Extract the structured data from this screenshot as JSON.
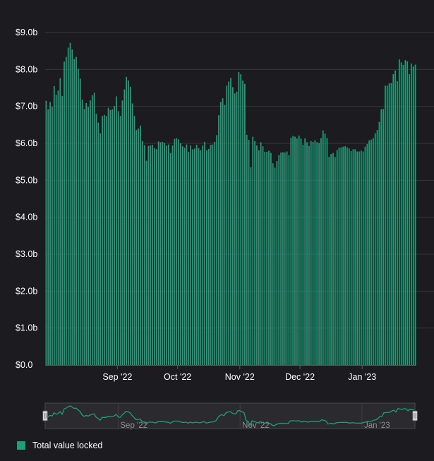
{
  "colors": {
    "background": "#1c1b1f",
    "bar": "#1f9e7a",
    "grid": "#38373b",
    "navigator_line": "#1f9e7a"
  },
  "legend": {
    "label": "Total value locked"
  },
  "chart_data": {
    "type": "bar",
    "title": "",
    "xlabel": "",
    "ylabel": "",
    "ylim": [
      0,
      9
    ],
    "yticks": [
      "$0.0",
      "$1.0b",
      "$2.0b",
      "$3.0b",
      "$4.0b",
      "$5.0b",
      "$6.0b",
      "$7.0b",
      "$8.0b",
      "$9.0b"
    ],
    "xticks": [
      "Sep '22",
      "Oct '22",
      "Nov '22",
      "Dec '22",
      "Jan '23"
    ],
    "navigator_ticks": [
      "Sep '22",
      "Nov '22",
      "Jan '23"
    ],
    "grid": true,
    "legend_position": "bottom-left",
    "x_start": "2022-07-27",
    "x_end": "2023-01-23",
    "series": [
      {
        "name": "Total value locked",
        "unit": "billion USD",
        "values": [
          7.15,
          6.92,
          7.12,
          6.99,
          7.55,
          7.31,
          7.43,
          7.76,
          7.28,
          8.21,
          8.34,
          8.59,
          8.72,
          8.54,
          8.28,
          8.34,
          8.02,
          7.75,
          7.18,
          6.93,
          7.09,
          6.98,
          7.16,
          7.3,
          7.37,
          6.8,
          6.56,
          6.27,
          6.74,
          6.77,
          6.74,
          6.96,
          6.9,
          6.92,
          7.01,
          7.27,
          6.87,
          6.74,
          7.16,
          7.46,
          7.8,
          7.7,
          7.53,
          7.08,
          6.74,
          6.36,
          6.4,
          6.48,
          6.06,
          5.95,
          5.53,
          5.93,
          5.94,
          5.96,
          5.87,
          5.84,
          6.05,
          6.03,
          6.04,
          6.01,
          5.94,
          5.97,
          5.74,
          5.94,
          6.12,
          6.14,
          6.11,
          6.0,
          5.92,
          5.88,
          5.97,
          5.77,
          5.94,
          5.84,
          5.86,
          5.96,
          5.87,
          5.82,
          5.94,
          6.04,
          5.81,
          5.85,
          5.96,
          5.97,
          6.04,
          6.22,
          6.76,
          7.12,
          7.22,
          7.04,
          7.56,
          7.67,
          7.77,
          7.52,
          7.35,
          7.4,
          7.93,
          7.87,
          7.7,
          7.61,
          6.23,
          6.09,
          5.35,
          6.18,
          6.06,
          5.94,
          5.81,
          6.03,
          5.92,
          5.77,
          5.77,
          5.8,
          5.74,
          5.46,
          5.34,
          5.52,
          5.68,
          5.75,
          5.76,
          5.75,
          5.78,
          5.68,
          6.15,
          6.2,
          6.18,
          6.13,
          6.21,
          6.13,
          5.96,
          6.13,
          6.03,
          5.93,
          6.06,
          6.04,
          6.08,
          6.03,
          6.01,
          6.14,
          6.35,
          6.26,
          6.14,
          5.63,
          5.71,
          5.74,
          5.63,
          5.82,
          5.88,
          5.89,
          5.91,
          5.92,
          5.89,
          5.86,
          5.79,
          5.84,
          5.84,
          5.78,
          5.78,
          5.8,
          5.78,
          5.91,
          5.98,
          6.08,
          6.1,
          6.14,
          6.27,
          6.36,
          6.58,
          6.92,
          6.93,
          7.56,
          7.56,
          7.62,
          7.63,
          7.87,
          7.97,
          7.68,
          8.27,
          8.19,
          8.12,
          8.25,
          8.22,
          7.87,
          8.16,
          8.08,
          8.13
        ]
      }
    ]
  }
}
